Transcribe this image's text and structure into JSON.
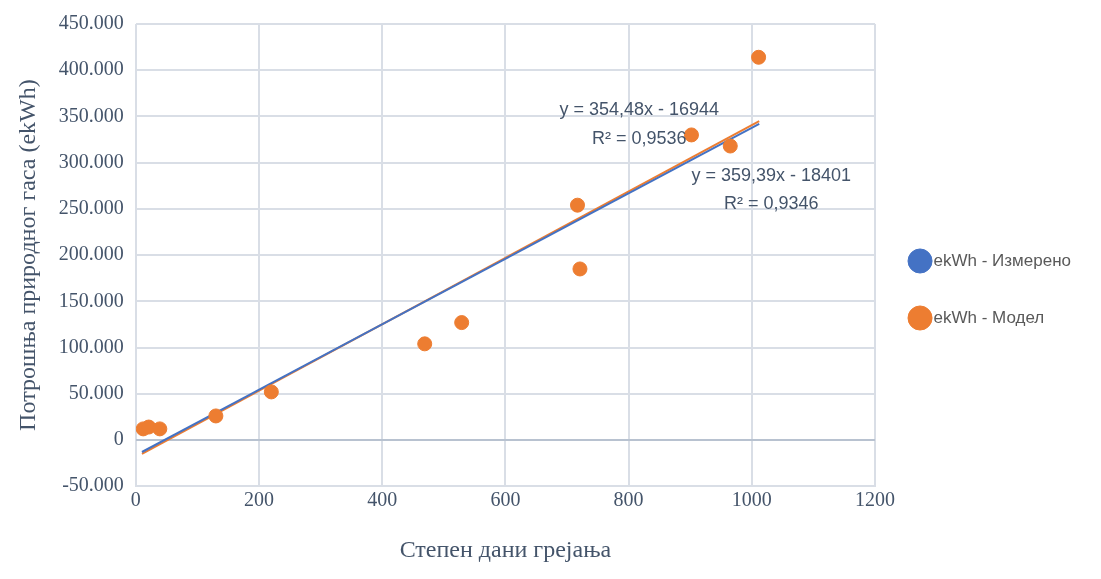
{
  "chart_data": {
    "type": "scatter",
    "xlabel": "Степен дани грејања",
    "ylabel": "Потрошња природног гаса (ekWh)",
    "xlim": [
      0,
      1200
    ],
    "xticks": [
      0,
      200,
      400,
      600,
      800,
      1000,
      1200
    ],
    "ylim": [
      -50000,
      450000
    ],
    "yticks": [
      {
        "value": -50000,
        "label": "-50.000"
      },
      0,
      {
        "value": 50000,
        "label": "50.000"
      },
      {
        "value": 100000,
        "label": "100.000"
      },
      {
        "value": 150000,
        "label": "150.000"
      },
      {
        "value": 200000,
        "label": "200.000"
      },
      {
        "value": 250000,
        "label": "250.000"
      },
      {
        "value": 300000,
        "label": "300.000"
      },
      {
        "value": 350000,
        "label": "350.000"
      },
      {
        "value": 400000,
        "label": "400.000"
      },
      {
        "value": 450000,
        "label": "450.000"
      }
    ],
    "grid": true,
    "legend": "right",
    "series": [
      {
        "name": "ekWh - Измерено",
        "color": "#4472c4",
        "marker": "circle"
      },
      {
        "name": "ekWh - Модел",
        "color": "#ed7d31",
        "marker": "circle",
        "x": [
          12,
          21,
          39,
          130,
          220,
          469,
          529,
          717,
          721,
          902,
          965,
          1011
        ],
        "values": [
          12000,
          14000,
          12000,
          26000,
          52000,
          104000,
          127000,
          254000,
          185000,
          330000,
          318000,
          414000
        ]
      },
      {
        "type": "line",
        "color": "#4472c4",
        "x": [
          10,
          1012
        ],
        "values": [
          -13000,
          342000
        ]
      },
      {
        "type": "line",
        "color": "#ed7d31",
        "x": [
          10,
          1012
        ],
        "values": [
          -15000,
          345000
        ]
      }
    ],
    "annotations": [
      "y = 354,48x - 16944",
      "R² = 0,9536",
      "y = 359,39x - 18401",
      "R² = 0,9346"
    ]
  }
}
